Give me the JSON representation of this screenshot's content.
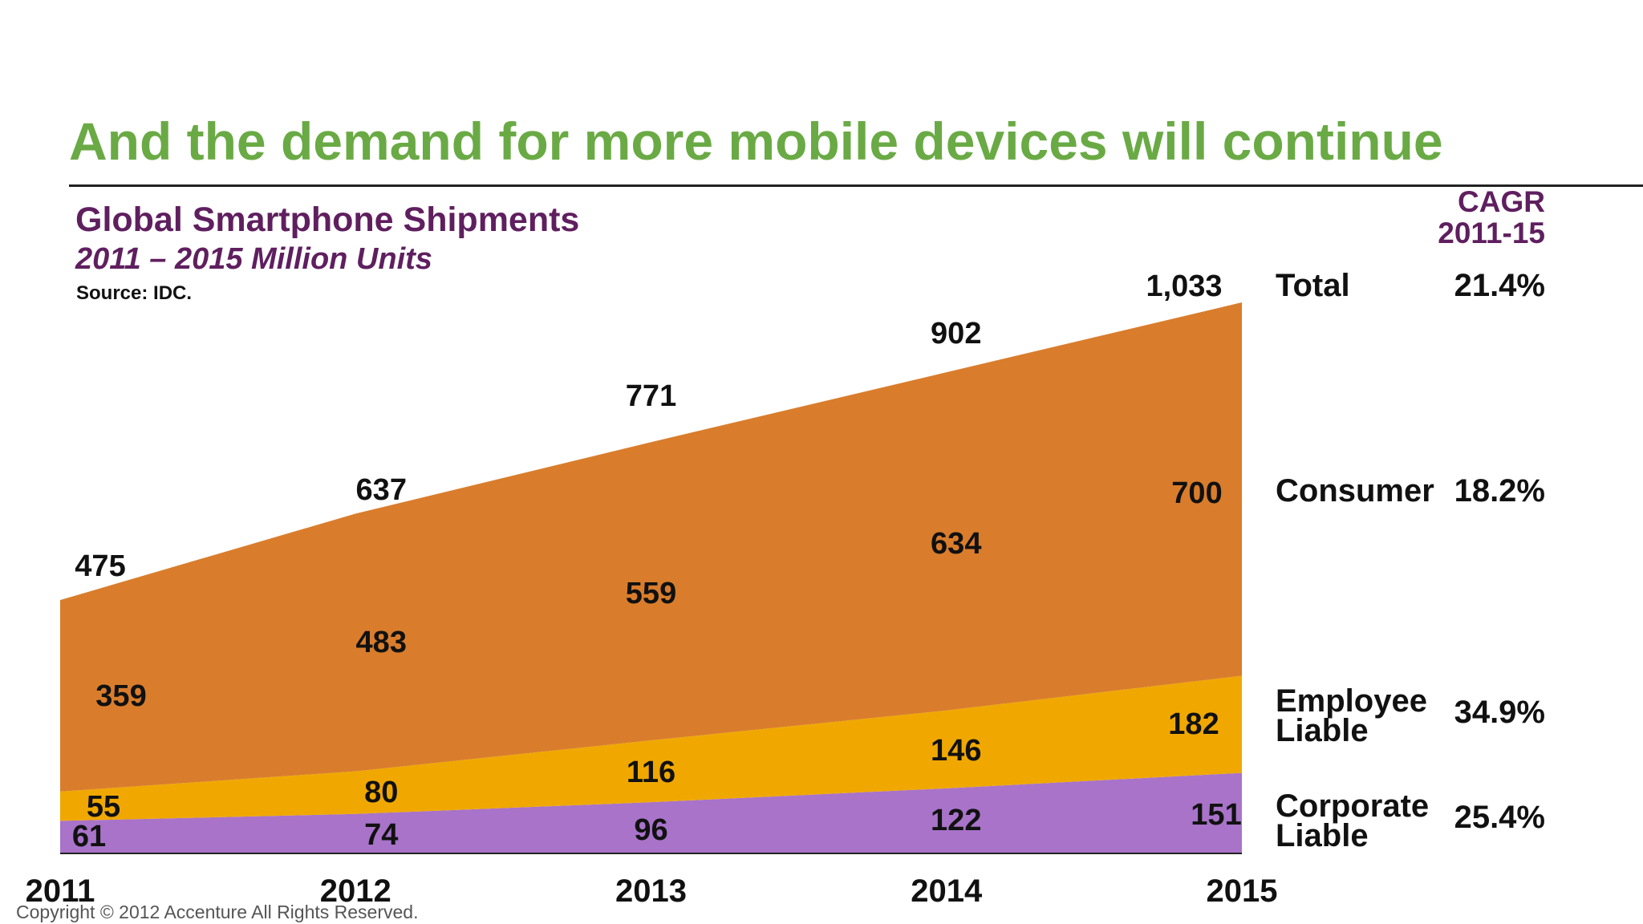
{
  "headline": "And the demand for more mobile devices will continue",
  "copyright": "Copyright © 2012 Accenture  All Rights Reserved.",
  "chart_data": {
    "type": "area",
    "stacked": true,
    "title": "Global Smartphone Shipments",
    "subtitle": "2011 – 2015 Million Units",
    "source": "Source: IDC.",
    "categories": [
      "2011",
      "2012",
      "2013",
      "2014",
      "2015"
    ],
    "ylim": [
      0,
      1100
    ],
    "grid": false,
    "legend_position": "right",
    "cagr_header": [
      "CAGR",
      "2011-15"
    ],
    "series": [
      {
        "name": "Corporate Liable",
        "legend_lines": [
          "Corporate",
          "Liable"
        ],
        "color": "#a873c9",
        "values": [
          61,
          74,
          96,
          122,
          151
        ],
        "labels": [
          "61",
          "74",
          "96",
          "122",
          "151"
        ],
        "cagr": "25.4%"
      },
      {
        "name": "Employee Liable",
        "legend_lines": [
          "Employee",
          "Liable"
        ],
        "color": "#f0a800",
        "values": [
          55,
          80,
          116,
          146,
          182
        ],
        "labels": [
          "55",
          "80",
          "116",
          "146",
          "182"
        ],
        "cagr": "34.9%"
      },
      {
        "name": "Consumer",
        "legend_lines": [
          "Consumer"
        ],
        "color": "#d97d2c",
        "values": [
          359,
          483,
          559,
          634,
          700
        ],
        "labels": [
          "359",
          "483",
          "559",
          "634",
          "700"
        ],
        "cagr": "18.2%"
      }
    ],
    "total": {
      "name": "Total",
      "values": [
        475,
        637,
        771,
        902,
        1033
      ],
      "labels": [
        "475",
        "637",
        "771",
        "902",
        "1,033"
      ],
      "cagr": "21.4%"
    }
  }
}
